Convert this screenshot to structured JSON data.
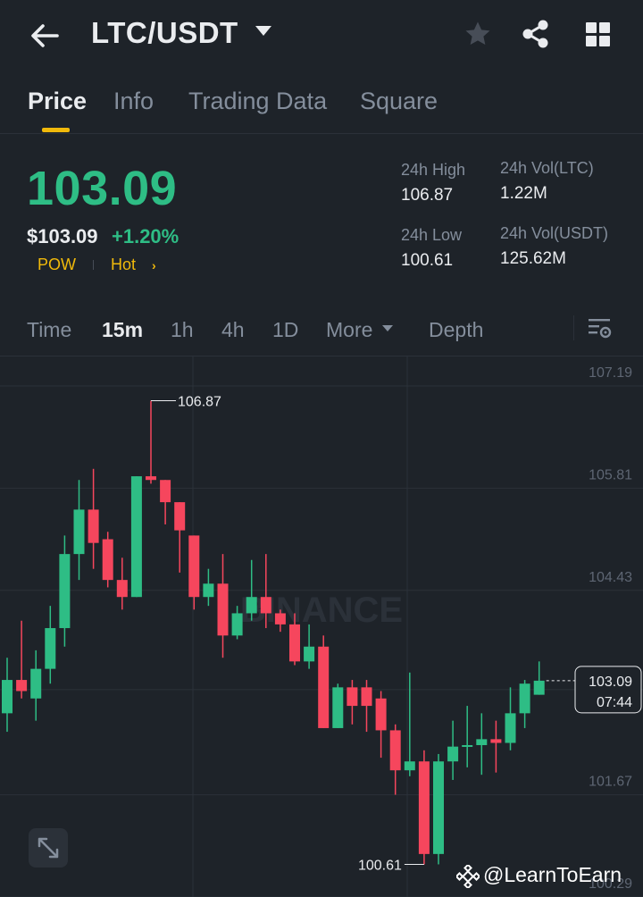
{
  "header": {
    "pair": "LTC/USDT"
  },
  "tabs": [
    {
      "label": "Price",
      "active": true
    },
    {
      "label": "Info",
      "active": false
    },
    {
      "label": "Trading Data",
      "active": false
    },
    {
      "label": "Square",
      "active": false
    }
  ],
  "ticker": {
    "last_price": "103.09",
    "usd_price": "$103.09",
    "change_pct": "+1.20%",
    "tags": [
      "POW",
      "Hot"
    ],
    "high_label": "24h High",
    "high_value": "106.87",
    "low_label": "24h Low",
    "low_value": "100.61",
    "vol_base_label": "24h Vol(LTC)",
    "vol_base_value": "1.22M",
    "vol_quote_label": "24h Vol(USDT)",
    "vol_quote_value": "125.62M"
  },
  "intervals": [
    "Time",
    "15m",
    "1h",
    "4h",
    "1D",
    "More",
    "Depth"
  ],
  "active_interval": "15m",
  "colors": {
    "up": "#2ebd85",
    "down": "#f6465d",
    "accent": "#f0b90b",
    "background": "#1e2329"
  },
  "chart_data": {
    "type": "candlestick",
    "y_ticks": [
      "107.19",
      "105.81",
      "104.43",
      "103.09",
      "101.67",
      "100.29"
    ],
    "ylim": [
      100.29,
      107.19
    ],
    "high_marker": "106.87",
    "low_marker": "100.61",
    "current_price_label": "103.09",
    "countdown": "07:44",
    "watermark": "BINANCE",
    "candles": [
      {
        "o": 102.65,
        "c": 103.1,
        "h": 103.4,
        "l": 102.4
      },
      {
        "o": 103.1,
        "c": 102.95,
        "h": 103.9,
        "l": 102.85
      },
      {
        "o": 102.85,
        "c": 103.25,
        "h": 103.5,
        "l": 102.55
      },
      {
        "o": 103.25,
        "c": 103.8,
        "h": 104.1,
        "l": 103.05
      },
      {
        "o": 103.8,
        "c": 104.8,
        "h": 105.05,
        "l": 103.55
      },
      {
        "o": 104.8,
        "c": 105.4,
        "h": 105.8,
        "l": 104.45
      },
      {
        "o": 105.4,
        "c": 104.95,
        "h": 105.95,
        "l": 104.6
      },
      {
        "o": 105.0,
        "c": 104.45,
        "h": 105.1,
        "l": 104.35
      },
      {
        "o": 104.45,
        "c": 104.22,
        "h": 104.75,
        "l": 104.05
      },
      {
        "o": 104.22,
        "c": 105.85,
        "h": 105.85,
        "l": 104.22
      },
      {
        "o": 105.85,
        "c": 105.8,
        "h": 106.87,
        "l": 105.75
      },
      {
        "o": 105.8,
        "c": 105.5,
        "h": 105.8,
        "l": 105.2
      },
      {
        "o": 105.5,
        "c": 105.12,
        "h": 105.5,
        "l": 104.55
      },
      {
        "o": 105.05,
        "c": 104.22,
        "h": 105.05,
        "l": 104.05
      },
      {
        "o": 104.22,
        "c": 104.4,
        "h": 104.6,
        "l": 104.1
      },
      {
        "o": 104.4,
        "c": 103.7,
        "h": 104.8,
        "l": 103.4
      },
      {
        "o": 103.7,
        "c": 104.0,
        "h": 104.1,
        "l": 103.65
      },
      {
        "o": 104.0,
        "c": 104.22,
        "h": 104.72,
        "l": 103.9
      },
      {
        "o": 104.22,
        "c": 104.0,
        "h": 104.8,
        "l": 103.8
      },
      {
        "o": 104.0,
        "c": 103.85,
        "h": 104.05,
        "l": 103.75
      },
      {
        "o": 103.85,
        "c": 103.35,
        "h": 104.0,
        "l": 103.3
      },
      {
        "o": 103.35,
        "c": 103.55,
        "h": 103.85,
        "l": 103.25
      },
      {
        "o": 103.55,
        "c": 102.45,
        "h": 103.7,
        "l": 102.45
      },
      {
        "o": 102.45,
        "c": 103.0,
        "h": 103.05,
        "l": 102.45
      },
      {
        "o": 103.0,
        "c": 102.75,
        "h": 103.1,
        "l": 102.5
      },
      {
        "o": 103.0,
        "c": 102.75,
        "h": 103.1,
        "l": 102.4
      },
      {
        "o": 102.85,
        "c": 102.42,
        "h": 102.95,
        "l": 102.05
      },
      {
        "o": 102.42,
        "c": 101.88,
        "h": 102.5,
        "l": 101.55
      },
      {
        "o": 101.88,
        "c": 102.0,
        "h": 103.2,
        "l": 101.8
      },
      {
        "o": 102.0,
        "c": 100.75,
        "h": 102.15,
        "l": 100.61
      },
      {
        "o": 100.75,
        "c": 102.0,
        "h": 102.1,
        "l": 100.61
      },
      {
        "o": 102.0,
        "c": 102.2,
        "h": 102.55,
        "l": 101.75
      },
      {
        "o": 102.2,
        "c": 102.22,
        "h": 102.75,
        "l": 101.92
      },
      {
        "o": 102.22,
        "c": 102.3,
        "h": 102.65,
        "l": 101.82
      },
      {
        "o": 102.3,
        "c": 102.25,
        "h": 102.55,
        "l": 101.85
      },
      {
        "o": 102.25,
        "c": 102.65,
        "h": 103.0,
        "l": 102.15
      },
      {
        "o": 102.65,
        "c": 103.05,
        "h": 103.1,
        "l": 102.45
      },
      {
        "o": 102.9,
        "c": 103.09,
        "h": 103.35,
        "l": 102.9
      }
    ]
  },
  "credit": {
    "text": "@LearnToEarn"
  }
}
